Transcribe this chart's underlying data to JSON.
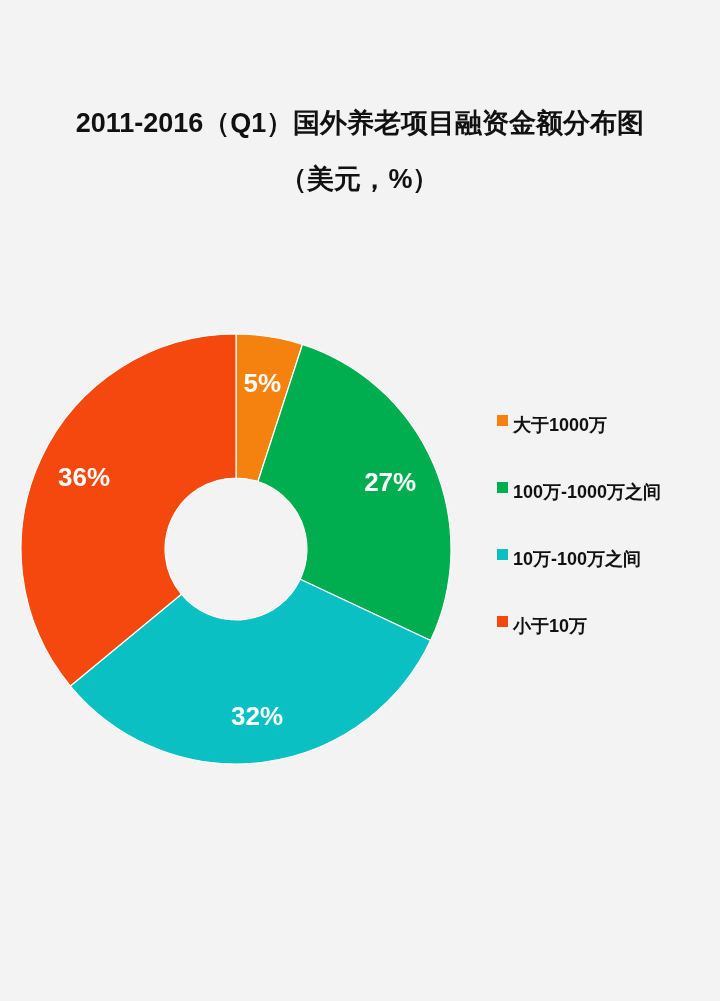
{
  "chart_data": {
    "type": "donut",
    "title": "2011-2016（Q1）国外养老项目融资金额分布图",
    "subtitle": "（美元，%）",
    "categories": [
      "大于1000万",
      "100万-1000万之间",
      "10万-100万之间",
      "小于10万"
    ],
    "values": [
      5,
      27,
      32,
      36
    ],
    "value_labels": [
      "5%",
      "27%",
      "32%",
      "36%"
    ],
    "colors": [
      "#f5820f",
      "#00ad4f",
      "#0bc0c2",
      "#f4480e"
    ],
    "legend": "right"
  }
}
